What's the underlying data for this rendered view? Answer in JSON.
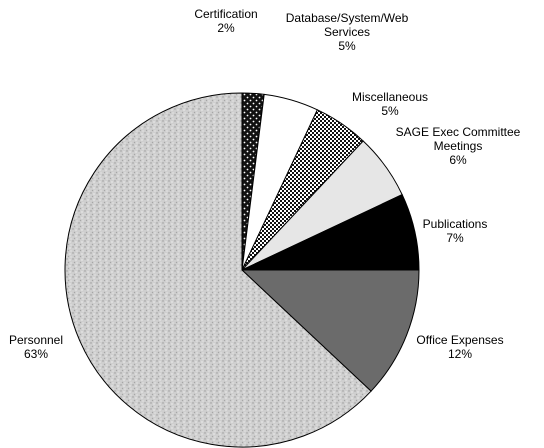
{
  "chart_data": {
    "type": "pie",
    "start_angle_deg": 0,
    "direction": "clockwise",
    "slices": [
      {
        "label": "Certification",
        "value": 2,
        "percent_label": "2%",
        "fill": "dots-black",
        "color": "#111111"
      },
      {
        "label": "Database/System/Web Services",
        "label_lines": [
          "Database/System/Web",
          "Services"
        ],
        "value": 5,
        "percent_label": "5%",
        "fill": "solid",
        "color": "#ffffff"
      },
      {
        "label": "Miscellaneous",
        "value": 5,
        "percent_label": "5%",
        "fill": "checker",
        "color": "#222222"
      },
      {
        "label": "SAGE Exec Committee Meetings",
        "label_lines": [
          "SAGE Exec Committee",
          "Meetings"
        ],
        "value": 6,
        "percent_label": "6%",
        "fill": "solid",
        "color": "#e6e6e6"
      },
      {
        "label": "Publications",
        "value": 7,
        "percent_label": "7%",
        "fill": "solid",
        "color": "#000000"
      },
      {
        "label": "Office Expenses",
        "value": 12,
        "percent_label": "12%",
        "fill": "solid",
        "color": "#6b6b6b"
      },
      {
        "label": "Personnel",
        "value": 63,
        "percent_label": "63%",
        "fill": "speckle",
        "color": "#c8c8c8"
      }
    ]
  }
}
